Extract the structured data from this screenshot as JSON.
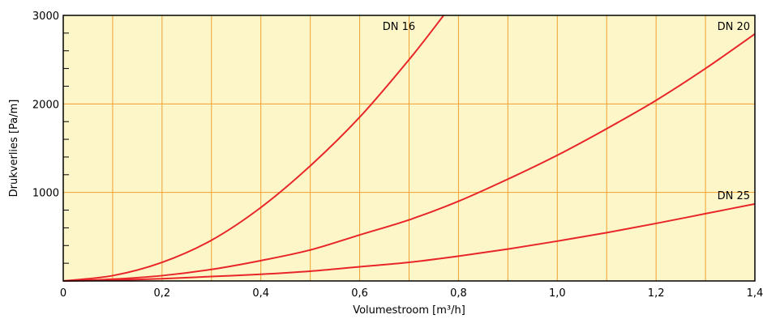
{
  "chart_data": {
    "type": "line",
    "title": "",
    "xlabel": "Volumestroom [m³/h]",
    "ylabel": "Drukverlies  [Pa/m]",
    "xlim": [
      0,
      1.4
    ],
    "ylim": [
      0,
      3000
    ],
    "x_ticks": [
      0,
      0.2,
      0.4,
      0.6,
      0.8,
      1.0,
      1.2,
      1.4
    ],
    "x_tick_labels": [
      "0",
      "0,2",
      "0,4",
      "0,6",
      "0,8",
      "1,0",
      "1,2",
      "1,4"
    ],
    "y_ticks": [
      1000,
      2000,
      3000
    ],
    "y_tick_labels": [
      "1000",
      "2000",
      "3000"
    ],
    "grid": true,
    "colors": {
      "background": "#fdf6c8",
      "grid": "#f0a030",
      "line": "#e8262a",
      "axis": "#000000"
    },
    "series": [
      {
        "name": "DN  16",
        "x": [
          0,
          0.1,
          0.2,
          0.3,
          0.4,
          0.5,
          0.6,
          0.7,
          0.77
        ],
        "y": [
          0,
          60,
          210,
          460,
          830,
          1300,
          1850,
          2500,
          3000
        ]
      },
      {
        "name": "DN  20",
        "x": [
          0,
          0.1,
          0.2,
          0.3,
          0.4,
          0.5,
          0.6,
          0.7,
          0.8,
          0.9,
          1.0,
          1.1,
          1.2,
          1.3,
          1.4
        ],
        "y": [
          0,
          20,
          60,
          130,
          230,
          350,
          520,
          690,
          900,
          1150,
          1420,
          1720,
          2040,
          2400,
          2790
        ]
      },
      {
        "name": "DN  25",
        "x": [
          0,
          0.1,
          0.2,
          0.3,
          0.4,
          0.5,
          0.6,
          0.7,
          0.8,
          0.9,
          1.0,
          1.1,
          1.2,
          1.3,
          1.4
        ],
        "y": [
          0,
          8,
          25,
          50,
          75,
          110,
          160,
          210,
          280,
          360,
          450,
          545,
          650,
          760,
          870
        ]
      }
    ]
  }
}
